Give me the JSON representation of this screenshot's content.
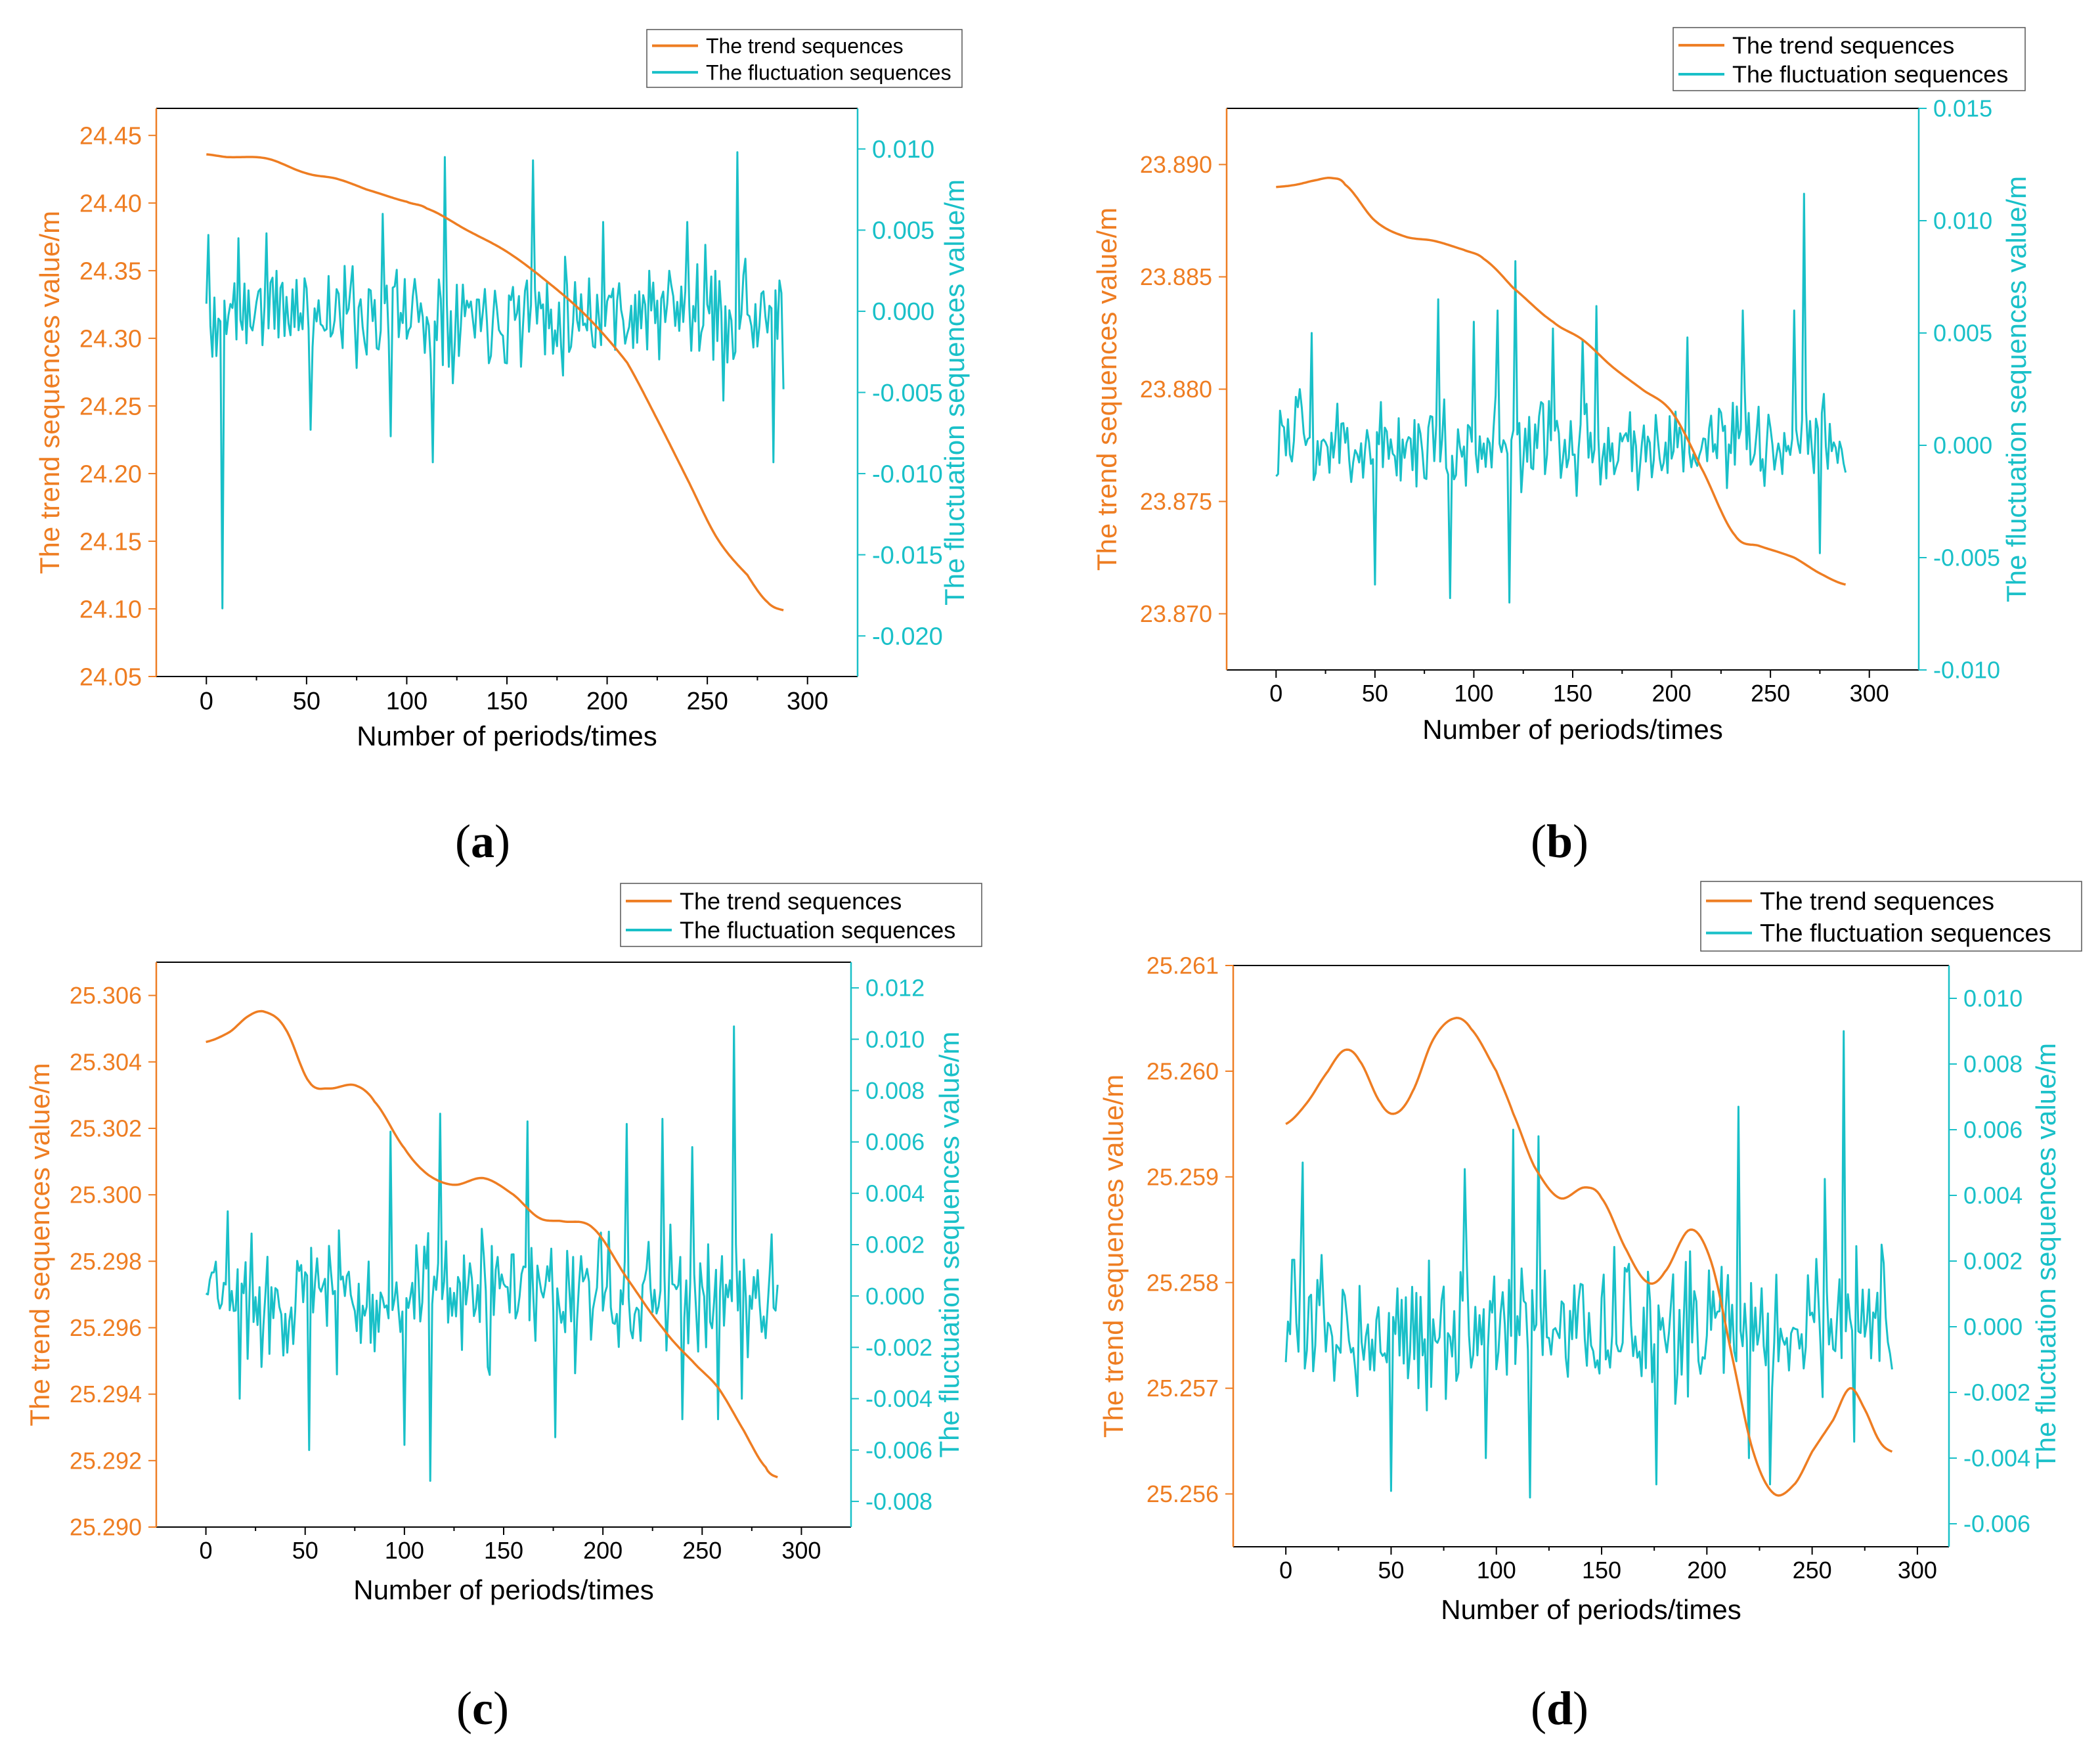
{
  "chart_data": [
    {
      "type": "line",
      "panel_label": "a",
      "title": "",
      "xlabel": "Number of periods/times",
      "ylabel_left": "The trend sequences value/m",
      "ylabel_right": "The fluctuation sequences value/m",
      "xlim": [
        -25,
        325
      ],
      "x_ticks": [
        0,
        50,
        100,
        150,
        200,
        250,
        300
      ],
      "x_tick_labels": [
        "0",
        "50",
        "100",
        "150",
        "200",
        "250",
        "300"
      ],
      "y_left_lim": [
        24.05,
        24.47
      ],
      "y_left_ticks": [
        24.05,
        24.1,
        24.15,
        24.2,
        24.25,
        24.3,
        24.35,
        24.4,
        24.45
      ],
      "y_left_tick_labels": [
        "24.05",
        "24.10",
        "24.15",
        "24.20",
        "24.25",
        "24.30",
        "24.35",
        "24.40",
        "24.45"
      ],
      "y_right_lim": [
        -0.0225,
        0.0125
      ],
      "y_right_ticks": [
        -0.02,
        -0.015,
        -0.01,
        -0.005,
        0.0,
        0.005,
        0.01
      ],
      "y_right_tick_labels": [
        "-0.020",
        "-0.015",
        "-0.010",
        "-0.005",
        "0.000",
        "0.005",
        "0.010"
      ],
      "legend_position": "top-right, outside above the plot",
      "trend": {
        "name": "The trend sequences",
        "color": "#ee7d22",
        "points": [
          [
            0,
            24.436
          ],
          [
            10,
            24.434
          ],
          [
            30,
            24.433
          ],
          [
            50,
            24.422
          ],
          [
            65,
            24.418
          ],
          [
            80,
            24.41
          ],
          [
            100,
            24.401
          ],
          [
            110,
            24.396
          ],
          [
            130,
            24.38
          ],
          [
            150,
            24.364
          ],
          [
            170,
            24.342
          ],
          [
            190,
            24.316
          ],
          [
            210,
            24.282
          ],
          [
            225,
            24.24
          ],
          [
            240,
            24.196
          ],
          [
            255,
            24.152
          ],
          [
            270,
            24.125
          ],
          [
            280,
            24.105
          ],
          [
            288,
            24.099
          ]
        ]
      },
      "fluctuation": {
        "name": "The fluctuation sequences",
        "color": "#19c0c8",
        "n": 289,
        "seed": 11,
        "amplitude": 0.0024,
        "spikes": [
          [
            1,
            0.0047
          ],
          [
            3,
            -0.0028
          ],
          [
            8,
            -0.0183
          ],
          [
            16,
            0.0045
          ],
          [
            30,
            0.0048
          ],
          [
            52,
            -0.0073
          ],
          [
            88,
            0.006
          ],
          [
            92,
            -0.0077
          ],
          [
            113,
            -0.0093
          ],
          [
            119,
            0.0095
          ],
          [
            163,
            0.0093
          ],
          [
            198,
            0.0055
          ],
          [
            240,
            0.0055
          ],
          [
            258,
            -0.0055
          ],
          [
            265,
            0.0098
          ],
          [
            283,
            -0.0093
          ],
          [
            288,
            -0.0048
          ]
        ]
      }
    },
    {
      "type": "line",
      "panel_label": "b",
      "title": "",
      "xlabel": "Number of periods/times",
      "ylabel_left": "The trend sequences value/m",
      "ylabel_right": "The fluctuation sequences value/m",
      "xlim": [
        -25,
        325
      ],
      "x_ticks": [
        0,
        50,
        100,
        150,
        200,
        250,
        300
      ],
      "x_tick_labels": [
        "0",
        "50",
        "100",
        "150",
        "200",
        "250",
        "300"
      ],
      "y_left_lim": [
        23.8675,
        23.8925
      ],
      "y_left_ticks": [
        23.87,
        23.875,
        23.88,
        23.885,
        23.89
      ],
      "y_left_tick_labels": [
        "23.870",
        "23.875",
        "23.880",
        "23.885",
        "23.890"
      ],
      "y_right_lim": [
        -0.01,
        0.015
      ],
      "y_right_ticks": [
        -0.01,
        -0.005,
        0.0,
        0.005,
        0.01,
        0.015
      ],
      "y_right_tick_labels": [
        "-0.010",
        "-0.005",
        "0.000",
        "0.005",
        "0.010",
        "0.015"
      ],
      "legend_position": "top-right, outside above the plot",
      "trend": {
        "name": "The trend sequences",
        "color": "#ee7d22",
        "points": [
          [
            0,
            23.889
          ],
          [
            10,
            23.8891
          ],
          [
            20,
            23.8893
          ],
          [
            28,
            23.8894
          ],
          [
            35,
            23.8891
          ],
          [
            50,
            23.8875
          ],
          [
            65,
            23.8868
          ],
          [
            80,
            23.8866
          ],
          [
            95,
            23.8862
          ],
          [
            105,
            23.8858
          ],
          [
            120,
            23.8845
          ],
          [
            140,
            23.883
          ],
          [
            155,
            23.8822
          ],
          [
            170,
            23.881
          ],
          [
            185,
            23.88
          ],
          [
            200,
            23.879
          ],
          [
            215,
            23.8765
          ],
          [
            232,
            23.8735
          ],
          [
            245,
            23.873
          ],
          [
            262,
            23.8725
          ],
          [
            275,
            23.8718
          ],
          [
            288,
            23.8713
          ]
        ]
      },
      "fluctuation": {
        "name": "The fluctuation sequences",
        "color": "#19c0c8",
        "n": 289,
        "seed": 23,
        "amplitude": 0.0015,
        "spikes": [
          [
            3,
            0.0009
          ],
          [
            12,
            0.0025
          ],
          [
            18,
            0.005
          ],
          [
            50,
            -0.0062
          ],
          [
            82,
            0.0065
          ],
          [
            88,
            -0.0068
          ],
          [
            100,
            0.0055
          ],
          [
            112,
            0.006
          ],
          [
            118,
            -0.007
          ],
          [
            121,
            0.0082
          ],
          [
            140,
            0.0052
          ],
          [
            155,
            0.0047
          ],
          [
            162,
            0.0062
          ],
          [
            208,
            0.0048
          ],
          [
            236,
            0.006
          ],
          [
            262,
            0.006
          ],
          [
            267,
            0.0112
          ],
          [
            275,
            -0.0048
          ]
        ]
      }
    },
    {
      "type": "line",
      "panel_label": "c",
      "title": "",
      "xlabel": "Number of periods/times",
      "ylabel_left": "The trend sequences value/m",
      "ylabel_right": "The fluctuation sequences value/m",
      "xlim": [
        -25,
        325
      ],
      "x_ticks": [
        0,
        50,
        100,
        150,
        200,
        250,
        300
      ],
      "x_tick_labels": [
        "0",
        "50",
        "100",
        "150",
        "200",
        "250",
        "300"
      ],
      "y_left_lim": [
        25.29,
        25.307
      ],
      "y_left_ticks": [
        25.29,
        25.292,
        25.294,
        25.296,
        25.298,
        25.3,
        25.302,
        25.304,
        25.306
      ],
      "y_left_tick_labels": [
        "25.290",
        "25.292",
        "25.294",
        "25.296",
        "25.298",
        "25.300",
        "25.302",
        "25.304",
        "25.306"
      ],
      "y_right_lim": [
        -0.009,
        0.013
      ],
      "y_right_ticks": [
        -0.008,
        -0.006,
        -0.004,
        -0.002,
        0.0,
        0.002,
        0.004,
        0.006,
        0.008,
        0.01,
        0.012
      ],
      "y_right_tick_labels": [
        "-0.008",
        "-0.006",
        "-0.004",
        "-0.002",
        "0.000",
        "0.002",
        "0.004",
        "0.006",
        "0.008",
        "0.010",
        "0.012"
      ],
      "legend_position": "top-right, outside above the plot",
      "trend": {
        "name": "The trend sequences",
        "color": "#ee7d22",
        "points": [
          [
            0,
            25.3046
          ],
          [
            12,
            25.3049
          ],
          [
            22,
            25.3054
          ],
          [
            30,
            25.3055
          ],
          [
            40,
            25.305
          ],
          [
            52,
            25.3034
          ],
          [
            62,
            25.3032
          ],
          [
            75,
            25.3033
          ],
          [
            85,
            25.3028
          ],
          [
            100,
            25.3014
          ],
          [
            112,
            25.3006
          ],
          [
            125,
            25.3003
          ],
          [
            140,
            25.3005
          ],
          [
            155,
            25.3
          ],
          [
            168,
            25.2993
          ],
          [
            180,
            25.2992
          ],
          [
            195,
            25.299
          ],
          [
            212,
            25.2975
          ],
          [
            230,
            25.296
          ],
          [
            245,
            25.295
          ],
          [
            258,
            25.2942
          ],
          [
            270,
            25.293
          ],
          [
            282,
            25.2918
          ],
          [
            288,
            25.2915
          ]
        ]
      },
      "fluctuation": {
        "name": "The fluctuation sequences",
        "color": "#19c0c8",
        "n": 289,
        "seed": 37,
        "amplitude": 0.0018,
        "spikes": [
          [
            11,
            0.0033
          ],
          [
            17,
            -0.004
          ],
          [
            52,
            -0.006
          ],
          [
            93,
            0.0064
          ],
          [
            100,
            -0.0058
          ],
          [
            113,
            -0.0072
          ],
          [
            118,
            0.0071
          ],
          [
            162,
            0.0068
          ],
          [
            176,
            -0.0055
          ],
          [
            212,
            0.0067
          ],
          [
            230,
            0.0069
          ],
          [
            240,
            -0.0048
          ],
          [
            245,
            0.0058
          ],
          [
            258,
            -0.0048
          ],
          [
            266,
            0.0105
          ],
          [
            270,
            -0.004
          ],
          [
            285,
            0.0024
          ]
        ]
      }
    },
    {
      "type": "line",
      "panel_label": "d",
      "title": "",
      "xlabel": "Number of periods/times",
      "ylabel_left": "The trend sequences value/m",
      "ylabel_right": "The fluctuation sequences value/m",
      "xlim": [
        -25,
        315
      ],
      "x_ticks": [
        0,
        50,
        100,
        150,
        200,
        250,
        300
      ],
      "x_tick_labels": [
        "0",
        "50",
        "100",
        "150",
        "200",
        "250",
        "300"
      ],
      "y_left_lim": [
        25.2555,
        25.261
      ],
      "y_left_ticks": [
        25.256,
        25.257,
        25.258,
        25.259,
        25.26,
        25.261
      ],
      "y_left_tick_labels": [
        "25.256",
        "25.257",
        "25.258",
        "25.259",
        "25.260",
        "25.261"
      ],
      "y_right_lim": [
        -0.0067,
        0.011
      ],
      "y_right_ticks": [
        -0.006,
        -0.004,
        -0.002,
        0.0,
        0.002,
        0.004,
        0.006,
        0.008,
        0.01
      ],
      "y_right_tick_labels": [
        "-0.006",
        "-0.004",
        "-0.002",
        "0.000",
        "0.002",
        "0.004",
        "0.006",
        "0.008",
        "0.010"
      ],
      "legend_position": "top-right, outside above the plot",
      "trend": {
        "name": "The trend sequences",
        "color": "#ee7d22",
        "points": [
          [
            0,
            25.2595
          ],
          [
            10,
            25.2597
          ],
          [
            20,
            25.26
          ],
          [
            28,
            25.2602
          ],
          [
            35,
            25.2601
          ],
          [
            45,
            25.2597
          ],
          [
            52,
            25.2596
          ],
          [
            60,
            25.2598
          ],
          [
            70,
            25.2603
          ],
          [
            80,
            25.2605
          ],
          [
            88,
            25.2604
          ],
          [
            100,
            25.26
          ],
          [
            108,
            25.2596
          ],
          [
            118,
            25.2591
          ],
          [
            130,
            25.2588
          ],
          [
            142,
            25.2589
          ],
          [
            150,
            25.2588
          ],
          [
            162,
            25.2583
          ],
          [
            172,
            25.258
          ],
          [
            180,
            25.2581
          ],
          [
            192,
            25.2585
          ],
          [
            202,
            25.2582
          ],
          [
            212,
            25.2573
          ],
          [
            222,
            25.2564
          ],
          [
            232,
            25.256
          ],
          [
            242,
            25.2561
          ],
          [
            250,
            25.2564
          ],
          [
            260,
            25.2567
          ],
          [
            268,
            25.257
          ],
          [
            275,
            25.2568
          ],
          [
            282,
            25.2565
          ],
          [
            288,
            25.2564
          ]
        ]
      },
      "fluctuation": {
        "name": "The fluctuation sequences",
        "color": "#19c0c8",
        "n": 289,
        "seed": 53,
        "amplitude": 0.0015,
        "spikes": [
          [
            8,
            0.005
          ],
          [
            50,
            -0.005
          ],
          [
            85,
            0.0048
          ],
          [
            95,
            -0.004
          ],
          [
            108,
            0.006
          ],
          [
            116,
            -0.0052
          ],
          [
            120,
            0.0058
          ],
          [
            176,
            -0.0048
          ],
          [
            215,
            0.0067
          ],
          [
            220,
            -0.004
          ],
          [
            230,
            -0.0048
          ],
          [
            256,
            0.0045
          ],
          [
            265,
            0.009
          ],
          [
            270,
            -0.0035
          ],
          [
            283,
            0.0025
          ]
        ]
      }
    }
  ]
}
